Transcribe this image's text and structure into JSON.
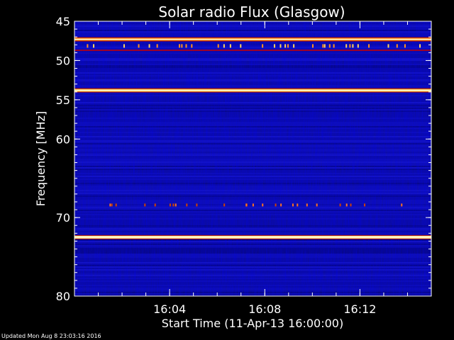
{
  "chart_data": {
    "type": "heatmap",
    "title": "Solar radio Flux (Glasgow)",
    "ylabel": "Frequency [MHz]",
    "xlabel": "Start Time (11-Apr-13 16:00:00)",
    "x_tick_labels": [
      "16:04",
      "16:08",
      "16:12"
    ],
    "x_ticks_minutes": [
      4,
      8,
      12
    ],
    "xlim_minutes": [
      0,
      15
    ],
    "y_tick_labels": [
      "45",
      "50",
      "55",
      "60",
      "70",
      "80"
    ],
    "y_ticks_mhz": [
      45,
      50,
      55,
      60,
      70,
      80
    ],
    "ylim_mhz": [
      45,
      80
    ],
    "y_reversed": true,
    "colormap": [
      "#000000",
      "#00007a",
      "#1a1ad0",
      "#c00000",
      "#ff8a00",
      "#ffff80"
    ],
    "bright_bands_mhz": [
      47.3,
      53.8,
      72.5
    ],
    "band_colors": [
      "#ff9a30",
      "#ffd060",
      "#ffe8a0"
    ],
    "grid": false
  },
  "footer": {
    "updated": "Updated Mon Aug  8 23:03:16 2016"
  }
}
